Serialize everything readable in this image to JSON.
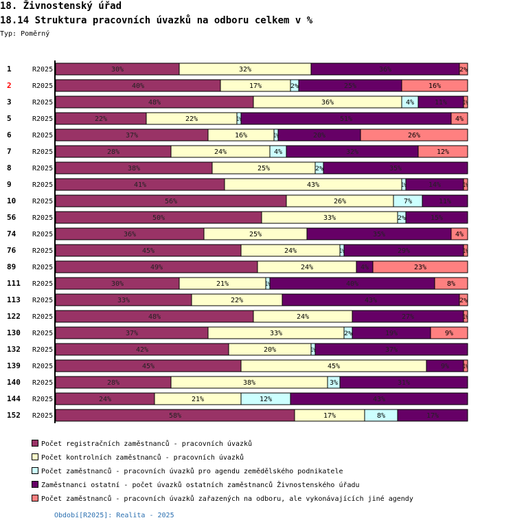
{
  "header": {
    "title": "18. Živnostenský úřad",
    "subtitle": "18.14 Struktura pracovních úvazků na odboru celkem v %",
    "type_label": "Typ: Poměrný"
  },
  "chart_data": {
    "type": "bar",
    "orientation": "horizontal",
    "stacked": true,
    "normalized_percent": true,
    "title": "18.14 Struktura pracovních úvazků na odboru celkem v %",
    "xlabel": "",
    "ylabel": "",
    "xlim": [
      0,
      100
    ],
    "grid": false,
    "legend_position": "bottom",
    "categories": [
      {
        "id": "1",
        "period": "R2025",
        "highlight": false
      },
      {
        "id": "2",
        "period": "R2025",
        "highlight": true
      },
      {
        "id": "3",
        "period": "R2025",
        "highlight": false
      },
      {
        "id": "5",
        "period": "R2025",
        "highlight": false
      },
      {
        "id": "6",
        "period": "R2025",
        "highlight": false
      },
      {
        "id": "7",
        "period": "R2025",
        "highlight": false
      },
      {
        "id": "8",
        "period": "R2025",
        "highlight": false
      },
      {
        "id": "9",
        "period": "R2025",
        "highlight": false
      },
      {
        "id": "10",
        "period": "R2025",
        "highlight": false
      },
      {
        "id": "56",
        "period": "R2025",
        "highlight": false
      },
      {
        "id": "74",
        "period": "R2025",
        "highlight": false
      },
      {
        "id": "76",
        "period": "R2025",
        "highlight": false
      },
      {
        "id": "89",
        "period": "R2025",
        "highlight": false
      },
      {
        "id": "111",
        "period": "R2025",
        "highlight": false
      },
      {
        "id": "113",
        "period": "R2025",
        "highlight": false
      },
      {
        "id": "122",
        "period": "R2025",
        "highlight": false
      },
      {
        "id": "130",
        "period": "R2025",
        "highlight": false
      },
      {
        "id": "132",
        "period": "R2025",
        "highlight": false
      },
      {
        "id": "139",
        "period": "R2025",
        "highlight": false
      },
      {
        "id": "140",
        "period": "R2025",
        "highlight": false
      },
      {
        "id": "144",
        "period": "R2025",
        "highlight": false
      },
      {
        "id": "152",
        "period": "R2025",
        "highlight": false
      }
    ],
    "series": [
      {
        "name": "Počet registračních zaměstnanců - pracovních úvazků",
        "color": "#993366",
        "values": [
          30,
          40,
          48,
          22,
          37,
          28,
          38,
          41,
          56,
          50,
          36,
          45,
          49,
          30,
          33,
          48,
          37,
          42,
          45,
          28,
          24,
          58
        ]
      },
      {
        "name": "Počet kontrolních zaměstnanců - pracovních úvazků",
        "color": "#ffffcc",
        "values": [
          32,
          17,
          36,
          22,
          16,
          24,
          25,
          43,
          26,
          33,
          25,
          24,
          24,
          21,
          22,
          24,
          33,
          20,
          45,
          38,
          21,
          17
        ]
      },
      {
        "name": "Počet zaměstnanců - pracovních úvazků pro agendu zemědělského podnikatele",
        "color": "#ccffff",
        "values": [
          0,
          2,
          4,
          1,
          1,
          4,
          2,
          1,
          7,
          2,
          0,
          1,
          0,
          1,
          0,
          0,
          2,
          1,
          0,
          3,
          12,
          8
        ]
      },
      {
        "name": "Zaměstnanci ostatní - počet úvazků ostatních zaměstnanců Živnostenského úřadu",
        "color": "#660066",
        "values": [
          36,
          25,
          11,
          51,
          20,
          32,
          35,
          14,
          11,
          15,
          35,
          29,
          4,
          40,
          43,
          27,
          19,
          37,
          9,
          31,
          43,
          17
        ]
      },
      {
        "name": "Počet zaměstnanců - pracovních úvazků zařazených na odboru, ale vykonávajících jiné agendy",
        "color": "#ff8080",
        "values": [
          2,
          16,
          1,
          4,
          26,
          12,
          0,
          1,
          0,
          0,
          4,
          1,
          23,
          8,
          2,
          1,
          9,
          0,
          1,
          0,
          0,
          0
        ]
      }
    ]
  },
  "legend": {
    "items": [
      {
        "label": "Počet registračních zaměstnanců - pracovních úvazků",
        "color": "#993366"
      },
      {
        "label": "Počet kontrolních zaměstnanců - pracovních úvazků",
        "color": "#ffffcc"
      },
      {
        "label": "Počet zaměstnanců - pracovních úvazků pro agendu zemědělského podnikatele",
        "color": "#ccffff"
      },
      {
        "label": "Zaměstnanci ostatní - počet úvazků ostatních zaměstnanců Živnostenského úřadu",
        "color": "#660066"
      },
      {
        "label": "Počet zaměstnanců - pracovních úvazků zařazených na odboru, ale vykonávajících jiné agendy",
        "color": "#ff8080"
      }
    ]
  },
  "footer": {
    "period_text": "Období[R2025]: Realita - 2025"
  }
}
